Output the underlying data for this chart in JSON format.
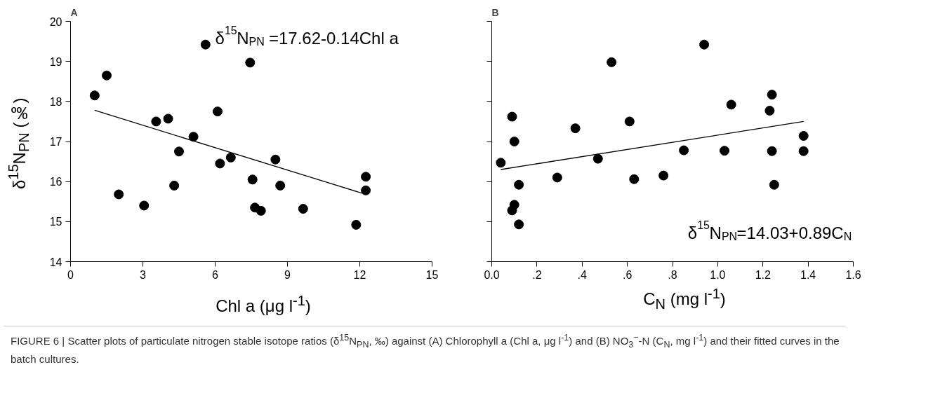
{
  "chart_data": [
    {
      "type": "scatter",
      "title": "A",
      "xlabel": "Chl a (μg l$^{-1}$)",
      "ylabel": "δ$^{15}$N$_{PN}$ (‰)",
      "xlim": [
        0,
        15
      ],
      "xticks": [
        0,
        3,
        6,
        9,
        12,
        15
      ],
      "ylim": [
        14,
        20
      ],
      "yticks": [
        14,
        15,
        16,
        17,
        18,
        19,
        20
      ],
      "grid": false,
      "annotations": [
        "δ$^{15}$N$_{PN}$ =17.62-0.14Chl a",
        "FIGURE 6 | Scatter plots of particulate nitrogen stable isotope ratios (δ$^{15}$N$_{PN}$, ‰) against (A) Chlorophyll a (Chl a, μg l$^{-1}$) and (B) NO$_{3}$$^{−}$-N (C$_{N}$, mg l$^{-1}$) and their fitted curves in the batch cultures."
      ],
      "series": [
        {
          "marker": "circle",
          "color": "#000000",
          "x": [
            1.0,
            1.5,
            2.0,
            3.05,
            3.55,
            4.05,
            4.3,
            4.5,
            5.1,
            5.6,
            6.1,
            6.2,
            6.65,
            7.45,
            7.55,
            7.65,
            7.9,
            8.5,
            8.7,
            9.65,
            11.85,
            12.25,
            12.25
          ],
          "values": [
            18.15,
            18.65,
            15.68,
            15.4,
            17.5,
            17.57,
            15.9,
            16.75,
            17.12,
            19.42,
            17.75,
            16.45,
            16.6,
            18.97,
            16.05,
            15.35,
            15.27,
            16.55,
            15.9,
            15.32,
            14.92,
            16.12,
            15.78
          ]
        },
        {
          "type": "line",
          "color": "#000000",
          "x": [
            1.0,
            12.25
          ],
          "values": [
            17.78,
            15.68
          ]
        }
      ]
    },
    {
      "type": "scatter",
      "title": "B",
      "xlabel": "C$_{N}$ (mg l$^{-1}$)",
      "xlim": [
        0,
        1.6
      ],
      "xticks": [
        {
          "value": 0,
          "label": "0.0"
        },
        {
          "value": 0.2,
          "label": ".2"
        },
        {
          "value": 0.4,
          "label": ".4"
        },
        {
          "value": 0.6,
          "label": ".6"
        },
        {
          "value": 0.8,
          "label": ".8"
        },
        {
          "value": 1.0,
          "label": "1.0"
        },
        {
          "value": 1.2,
          "label": "1.2"
        },
        {
          "value": 1.4,
          "label": "1.4"
        },
        {
          "value": 1.6,
          "label": "1.6"
        }
      ],
      "ylim": [
        14,
        20
      ],
      "yticks": [
        14,
        15,
        16,
        17,
        18,
        19,
        20
      ],
      "tick_labels": "x",
      "grid": false,
      "annotations": [
        "δ$^{15}$N$_{PN}$=14.03+0.89C$_{N}$"
      ],
      "series": [
        {
          "marker": "circle",
          "color": "#000000",
          "x": [
            0.04,
            0.09,
            0.1,
            0.12,
            0.1,
            0.09,
            0.12,
            0.29,
            0.37,
            0.47,
            0.53,
            0.61,
            0.63,
            0.76,
            0.85,
            0.94,
            1.03,
            1.06,
            1.23,
            1.24,
            1.24,
            1.25,
            1.38,
            1.38
          ],
          "values": [
            16.47,
            17.62,
            17.0,
            15.92,
            15.42,
            15.28,
            14.93,
            16.1,
            17.33,
            16.57,
            18.98,
            17.5,
            16.06,
            16.15,
            16.78,
            19.42,
            16.77,
            17.92,
            17.77,
            18.17,
            16.76,
            15.92,
            17.14,
            16.76
          ]
        },
        {
          "type": "line",
          "color": "#000000",
          "x": [
            0.04,
            1.38
          ],
          "values": [
            16.3,
            17.5
          ]
        }
      ]
    }
  ]
}
